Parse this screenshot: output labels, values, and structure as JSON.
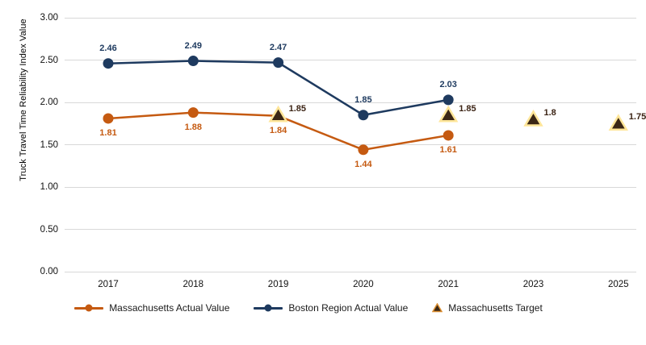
{
  "chart_data": {
    "type": "line",
    "title": "",
    "ylabel": "Truck Travel Time Reliability Index Value",
    "xlabel": "",
    "categories": [
      "2017",
      "2018",
      "2019",
      "2020",
      "2021",
      "2023",
      "2025"
    ],
    "y_tick_labels": [
      "3.00",
      "2.50",
      "2.00",
      "1.50",
      "1.00",
      "0.50",
      "0.00"
    ],
    "y_ticks": [
      3.0,
      2.5,
      2.0,
      1.5,
      1.0,
      0.5,
      0.0
    ],
    "ylim": [
      0,
      3
    ],
    "grid": true,
    "gridline_color": "#D8D8D8",
    "legend_position": "bottom",
    "series": [
      {
        "name": "Massachusetts Actual Value",
        "type": "line",
        "marker": "circle",
        "color": "#C55A11",
        "label_color": "#C55A11",
        "label_pos": "below",
        "values": [
          1.81,
          1.88,
          1.84,
          1.44,
          1.61,
          null,
          null
        ],
        "labels": [
          "1.81",
          "1.88",
          "1.84",
          "1.44",
          "1.61",
          null,
          null
        ]
      },
      {
        "name": "Boston Region Actual Value",
        "type": "line",
        "marker": "circle",
        "color": "#1E3A5F",
        "label_color": "#1E3A5F",
        "label_pos": "above",
        "values": [
          2.46,
          2.49,
          2.47,
          1.85,
          2.03,
          null,
          null
        ],
        "labels": [
          "2.46",
          "2.49",
          "2.47",
          "1.85",
          "2.03",
          null,
          null
        ]
      },
      {
        "name": "Massachusetts Target",
        "type": "scatter",
        "marker": "triangle",
        "color": "#3B2314",
        "marker_fill": "#3B2715",
        "marker_stroke": "#FFE699",
        "legend_marker_stroke": "#D98E32",
        "label_color": "#3B2314",
        "label_pos": "upper-right",
        "values": [
          null,
          null,
          1.85,
          null,
          1.85,
          1.8,
          1.75
        ],
        "labels": [
          null,
          null,
          "1.85",
          null,
          "1.85",
          "1.8",
          "1.75"
        ]
      }
    ]
  }
}
